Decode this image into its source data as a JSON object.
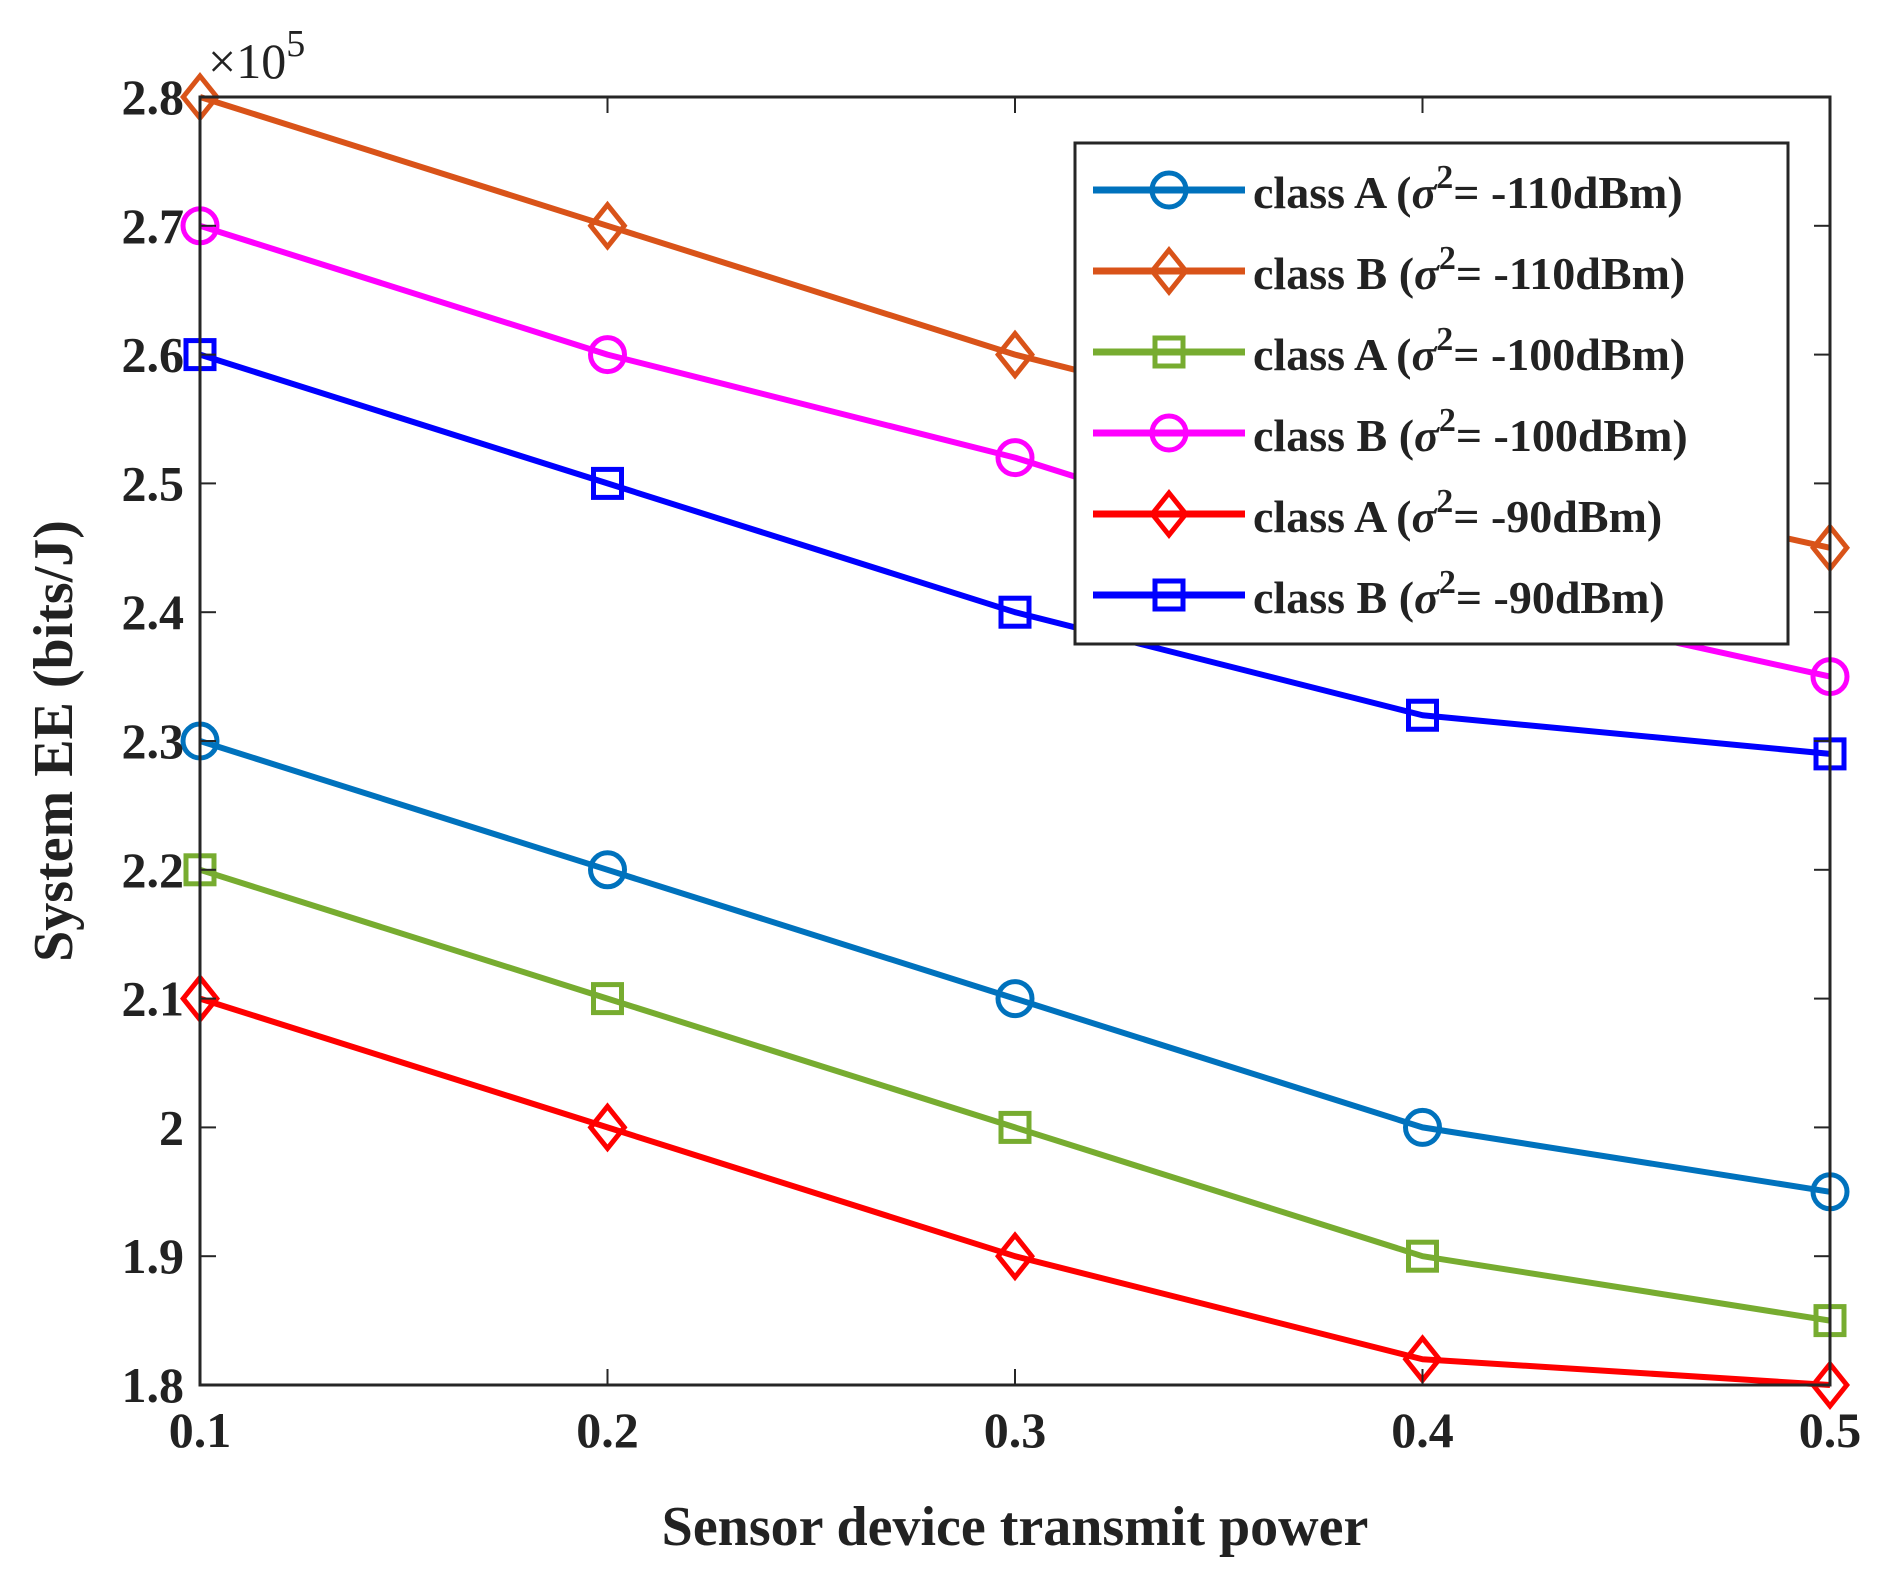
{
  "chart_data": {
    "type": "line",
    "xlabel": "Sensor device transmit power",
    "ylabel": "System EE (bits/J)",
    "y_exponent": "×10",
    "y_exponent_power": "5",
    "xlim": [
      0.1,
      0.5
    ],
    "ylim": [
      1.8,
      2.8
    ],
    "x_ticks": [
      0.1,
      0.2,
      0.3,
      0.4,
      0.5
    ],
    "x_tick_labels": [
      "0.1",
      "0.2",
      "0.3",
      "0.4",
      "0.5"
    ],
    "y_ticks": [
      1.8,
      1.9,
      2.0,
      2.1,
      2.2,
      2.3,
      2.4,
      2.5,
      2.6,
      2.7,
      2.8
    ],
    "y_tick_labels": [
      "1.8",
      "1.9",
      "2",
      "2.1",
      "2.2",
      "2.3",
      "2.4",
      "2.5",
      "2.6",
      "2.7",
      "2.8"
    ],
    "grid": false,
    "legend_position": "top-right",
    "x": [
      0.1,
      0.2,
      0.3,
      0.4,
      0.5
    ],
    "series": [
      {
        "class_label": "class A",
        "noise_value": "= -110dBm)",
        "color": "#0072BD",
        "marker": "circle",
        "values": [
          2.3,
          2.2,
          2.1,
          2.0,
          1.95
        ]
      },
      {
        "class_label": "class B",
        "noise_value": "= -110dBm)",
        "color": "#D95319",
        "marker": "diamond",
        "values": [
          2.8,
          2.7,
          2.6,
          2.52,
          2.45
        ]
      },
      {
        "class_label": "class A",
        "noise_value": "= -100dBm)",
        "color": "#77AC30",
        "marker": "square",
        "values": [
          2.2,
          2.1,
          2.0,
          1.9,
          1.85
        ]
      },
      {
        "class_label": "class B",
        "noise_value": "= -100dBm)",
        "color": "#FF00FF",
        "marker": "circle",
        "values": [
          2.7,
          2.6,
          2.52,
          2.42,
          2.35
        ]
      },
      {
        "class_label": "class A",
        "noise_value": "= -90dBm)",
        "color": "#FF0000",
        "marker": "diamond",
        "values": [
          2.1,
          2.0,
          1.9,
          1.82,
          1.8
        ]
      },
      {
        "class_label": "class B",
        "noise_value": "= -90dBm)",
        "color": "#0000FF",
        "marker": "square",
        "values": [
          2.6,
          2.5,
          2.4,
          2.32,
          2.29
        ]
      }
    ],
    "legend_sigma": "σ",
    "legend_sigma_power": "2"
  }
}
